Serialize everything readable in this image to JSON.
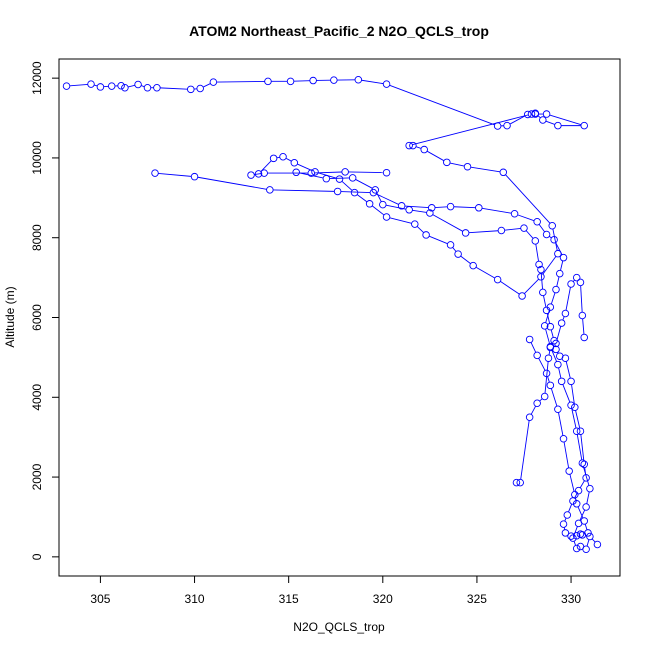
{
  "chart_data": {
    "type": "line",
    "title": "ATOM2 Northeast_Pacific_2 N2O_QCLS_trop",
    "xlabel": "N2O_QCLS_trop",
    "ylabel": "Altitude (m)",
    "xlim": [
      302.8,
      332.6
    ],
    "ylim": [
      -480,
      12480
    ],
    "x_ticks": [
      305,
      310,
      315,
      320,
      325,
      330
    ],
    "y_ticks": [
      0,
      2000,
      4000,
      6000,
      8000,
      10000,
      12000
    ],
    "grid": false,
    "legend": "none",
    "series_color": "#0000ff",
    "marker": "open-circle",
    "series": [
      {
        "x": [
          303.2,
          304.5,
          305.0,
          305.6,
          306.1,
          306.3,
          307.0,
          307.5,
          308.0,
          309.8,
          310.3,
          311.0,
          313.9,
          315.1,
          316.3,
          317.4,
          318.7,
          320.2,
          326.1,
          326.6,
          327.7,
          328.1,
          328.7,
          330.7,
          329.3,
          328.5,
          328.1,
          327.9,
          321.4,
          321.6,
          322.2,
          323.4,
          324.5,
          326.4,
          329.0,
          329.3,
          328.4,
          327.4,
          326.1,
          324.8,
          324.0,
          323.6,
          322.3,
          321.7,
          320.2,
          319.3,
          318.5,
          317.7,
          316.4,
          315.3,
          314.7,
          314.2,
          313.4,
          313.0,
          313.7,
          316.2,
          318.0,
          320.2
        ],
        "y": [
          11800,
          11850,
          11780,
          11800,
          11810,
          11760,
          11840,
          11760,
          11760,
          11720,
          11740,
          11900,
          11920,
          11920,
          11940,
          11950,
          11960,
          11850,
          10800,
          10810,
          11090,
          11100,
          11100,
          10810,
          10810,
          10950,
          11120,
          11100,
          10310,
          10310,
          10210,
          9890,
          9780,
          9640,
          8300,
          7600,
          7020,
          6540,
          6950,
          7300,
          7590,
          7820,
          8070,
          8340,
          8520,
          8850,
          9130,
          9470,
          9650,
          9880,
          10030,
          9990,
          9600,
          9570,
          9620,
          9620,
          9650,
          9630
        ]
      },
      {
        "x": [
          307.9,
          310.0,
          314.0,
          317.6,
          319.5,
          321.0,
          322.6,
          323.6,
          325.1,
          327.0,
          328.2,
          328.7,
          329.1,
          329.6,
          329.4,
          329.2,
          328.9,
          328.6,
          328.9,
          329.3,
          329.5,
          330.0,
          330.3,
          330.6,
          331.0,
          330.8,
          330.4,
          330.1,
          330.3,
          330.5,
          330.8,
          331.0,
          331.4
        ],
        "y": [
          9620,
          9530,
          9200,
          9160,
          9130,
          8800,
          8750,
          8780,
          8750,
          8600,
          8400,
          8080,
          7950,
          7500,
          7100,
          6700,
          6260,
          5790,
          5270,
          4820,
          4400,
          3800,
          3150,
          2350,
          1710,
          1250,
          840,
          470,
          210,
          260,
          190,
          510,
          310
        ]
      },
      {
        "x": [
          315.4,
          317.0,
          318.4,
          319.6,
          320.0,
          321.4,
          322.5,
          324.4,
          326.3,
          327.5,
          328.1,
          328.3,
          328.4,
          328.5,
          328.7,
          328.9,
          329.1,
          329.2,
          329.4,
          329.7,
          330.0,
          330.2,
          330.5,
          330.7,
          330.8,
          330.4,
          330.1,
          329.8,
          329.6,
          329.7,
          330.0,
          330.3,
          330.6
        ],
        "y": [
          9640,
          9480,
          9500,
          9200,
          8830,
          8700,
          8620,
          8120,
          8180,
          8240,
          7920,
          7330,
          7200,
          6630,
          6180,
          5770,
          5420,
          5200,
          5030,
          4980,
          4400,
          3750,
          3150,
          2320,
          1980,
          1660,
          1400,
          1050,
          820,
          600,
          520,
          530,
          550
        ]
      },
      {
        "x": [
          327.1,
          327.3,
          327.8,
          328.2,
          328.6,
          328.8,
          328.9,
          329.2,
          329.5,
          329.7,
          330.0,
          330.3,
          330.5,
          330.6,
          330.7
        ],
        "y": [
          1860,
          1860,
          3500,
          3850,
          4020,
          4980,
          5250,
          5350,
          5860,
          6100,
          6840,
          7000,
          6880,
          6050,
          5500
        ]
      },
      {
        "x": [
          327.8,
          328.2,
          328.7,
          328.9,
          329.3,
          329.6,
          329.9,
          330.2,
          330.3,
          330.7,
          330.9,
          330.5
        ],
        "y": [
          5450,
          5050,
          4600,
          4300,
          3700,
          2960,
          2150,
          1560,
          1330,
          900,
          600,
          570
        ]
      }
    ]
  }
}
